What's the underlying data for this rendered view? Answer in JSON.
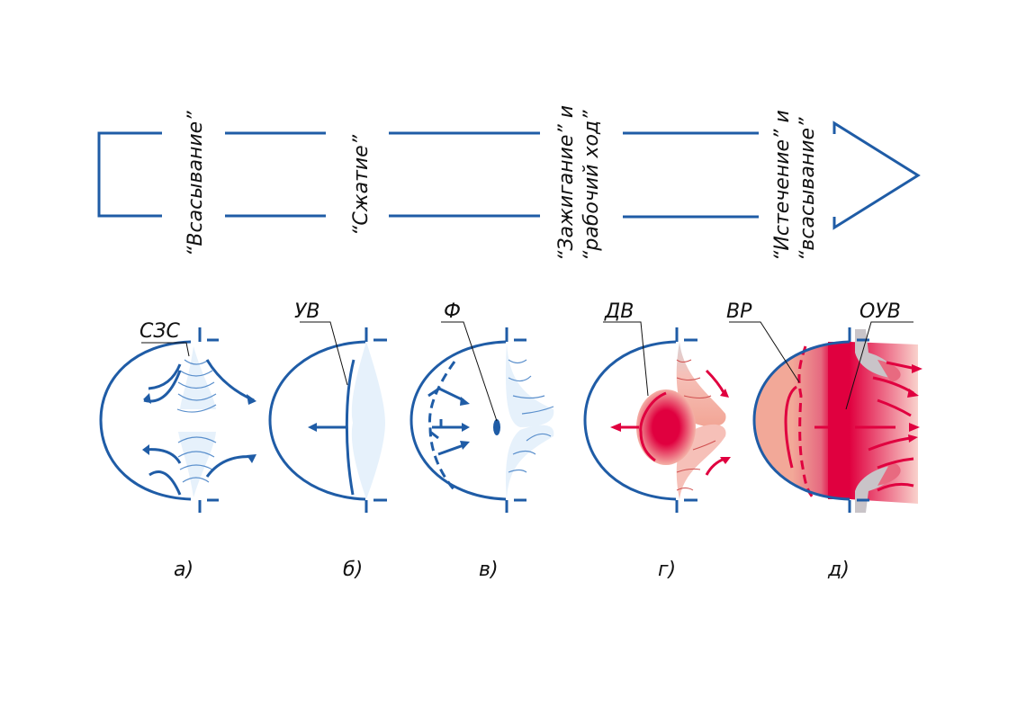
{
  "stages": [
    {
      "label": "“Всасывание”"
    },
    {
      "label": "“Сжатие”"
    },
    {
      "label_line1": "“Зажигание” и",
      "label_line2": "“рабочий ход”"
    },
    {
      "label_line1": "“Истечение” и",
      "label_line2": "“всасывание”"
    }
  ],
  "callouts": {
    "a": "СЗС",
    "b": "УВ",
    "c": "Ф",
    "d": "ДВ",
    "e1": "ВР",
    "e2": "ОУВ"
  },
  "captions": [
    "а)",
    "б)",
    "в)",
    "г)",
    "д)"
  ],
  "colors": {
    "outline": "#1f5ca6",
    "cold_gas": "#e6f1fb",
    "hot": "#e0003f",
    "hot_light": "#f4a99a",
    "nozzle": "#c9c4c8"
  }
}
